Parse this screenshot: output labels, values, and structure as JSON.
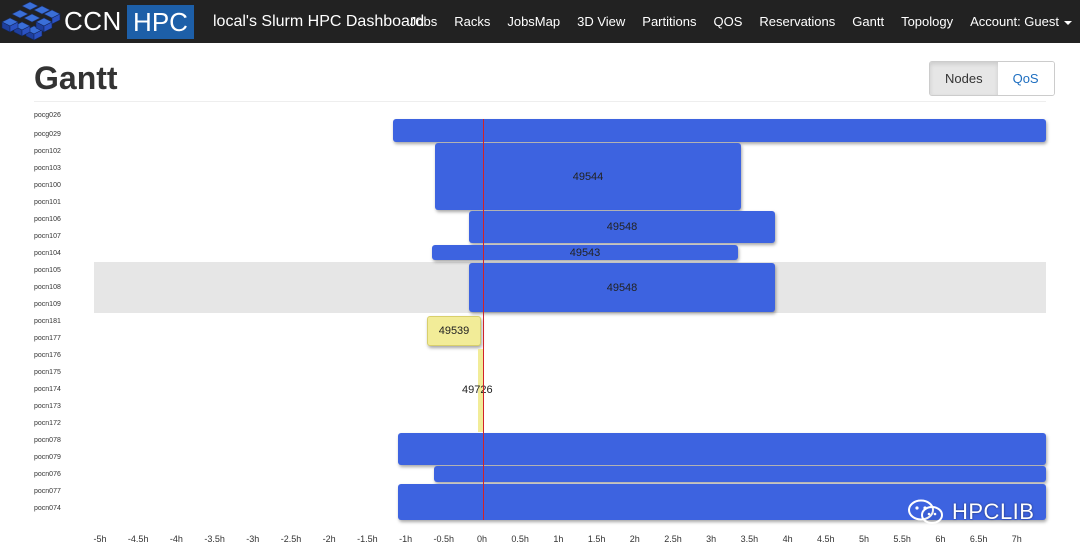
{
  "navbar": {
    "brand_left": "CCN",
    "brand_right": "HPC",
    "title": "local's Slurm HPC Dashboard",
    "links": [
      "Jobs",
      "Racks",
      "JobsMap",
      "3D View",
      "Partitions",
      "QOS",
      "Reservations",
      "Gantt",
      "Topology"
    ],
    "account_label": "Account: Guest",
    "bg_color": "#222222",
    "brand_color": "#1d5fa8"
  },
  "page": {
    "title": "Gantt"
  },
  "view_toggle": {
    "nodes_label": "Nodes",
    "qos_label": "QoS",
    "active": "Nodes"
  },
  "gantt": {
    "now_label": "0h",
    "nodes": [
      "pocg026",
      "pocg029",
      "pocn102",
      "pocn103",
      "pocn100",
      "pocn101",
      "pocn106",
      "pocn107",
      "pocn104",
      "pocn105",
      "pocn108",
      "pocn109",
      "pocn181",
      "pocn177",
      "pocn176",
      "pocn175",
      "pocn174",
      "pocn173",
      "pocn172",
      "pocn078",
      "pocn079",
      "pocn076",
      "pocn077",
      "pocn074"
    ],
    "jobs": [
      {
        "id": "",
        "color": "blue",
        "label": ""
      },
      {
        "id": "49544",
        "color": "blue",
        "label": "49544"
      },
      {
        "id": "49548",
        "color": "blue",
        "label": "49548"
      },
      {
        "id": "49543",
        "color": "blue",
        "label": "49543"
      },
      {
        "id": "49548",
        "color": "blue",
        "label": "49548"
      },
      {
        "id": "49539",
        "color": "yellow",
        "label": "49539"
      },
      {
        "id": "49726",
        "color": "yellow",
        "label": "49726"
      },
      {
        "id": "",
        "color": "blue",
        "label": ""
      },
      {
        "id": "",
        "color": "blue",
        "label": ""
      },
      {
        "id": "",
        "color": "blue",
        "label": ""
      }
    ],
    "ticks": [
      "-5h",
      "-4.5h",
      "-4h",
      "-3.5h",
      "-3h",
      "-2.5h",
      "-2h",
      "-1.5h",
      "-1h",
      "-0.5h",
      "0h",
      "0.5h",
      "1h",
      "1.5h",
      "2h",
      "2.5h",
      "3h",
      "3.5h",
      "4h",
      "4.5h",
      "5h",
      "5.5h",
      "6h",
      "6.5h",
      "7h"
    ],
    "colors": {
      "blue": "#3d63e0",
      "yellow": "#f2ec98",
      "now_line": "#d1222a",
      "highlight": "#e6e6e6"
    }
  },
  "watermark": {
    "text": "HPCLIB",
    "icon": "wechat-icon"
  }
}
